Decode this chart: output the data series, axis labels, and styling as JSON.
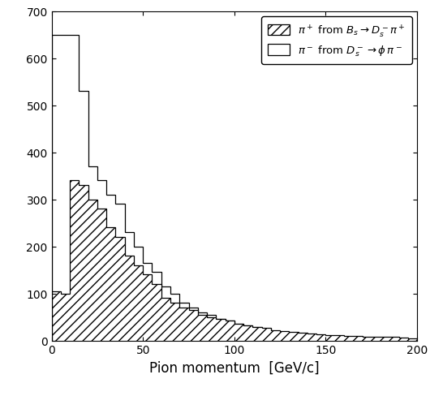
{
  "title": "",
  "xlabel": "Pion momentum  [GeV/c]",
  "ylabel": "",
  "xlim": [
    0,
    200
  ],
  "ylim": [
    0,
    700
  ],
  "yticks": [
    0,
    100,
    200,
    300,
    400,
    500,
    600,
    700
  ],
  "xticks": [
    0,
    50,
    100,
    150,
    200
  ],
  "bin_edges": [
    0,
    5,
    10,
    15,
    20,
    25,
    30,
    35,
    40,
    45,
    50,
    55,
    60,
    65,
    70,
    75,
    80,
    85,
    90,
    95,
    100,
    105,
    110,
    115,
    120,
    125,
    130,
    135,
    140,
    145,
    150,
    155,
    160,
    165,
    170,
    175,
    180,
    185,
    190,
    195,
    200
  ],
  "hist_piplus": [
    105,
    100,
    340,
    330,
    300,
    280,
    240,
    220,
    180,
    160,
    140,
    120,
    90,
    80,
    70,
    65,
    55,
    50,
    45,
    42,
    35,
    32,
    28,
    26,
    22,
    20,
    18,
    17,
    14,
    13,
    12,
    11,
    10,
    9,
    8,
    8,
    7,
    7,
    6,
    5
  ],
  "hist_piminus": [
    650,
    650,
    650,
    530,
    370,
    340,
    310,
    290,
    230,
    200,
    165,
    145,
    115,
    100,
    80,
    70,
    60,
    55,
    45,
    42,
    35,
    32,
    28,
    25,
    20,
    18,
    15,
    14,
    12,
    11,
    9,
    8,
    7,
    7,
    5,
    5,
    4,
    4,
    3,
    3
  ],
  "legend_label_piplus": "$\\pi^+$ from $B_s \\rightarrow D_s^- \\pi^+$",
  "legend_label_piminus": "$\\pi^-$ from $D_s^- \\rightarrow \\phi\\, \\pi^-$",
  "hatch_piplus": "///",
  "figsize": [
    5.3,
    4.89
  ],
  "dpi": 100,
  "legend_fontsize": 9.5,
  "xlabel_fontsize": 12
}
